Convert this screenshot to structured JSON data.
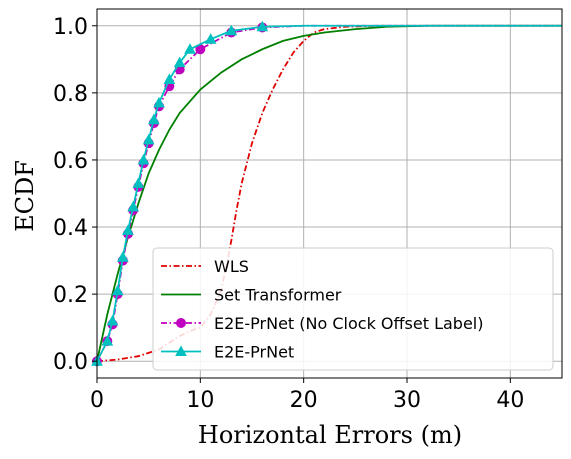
{
  "chart_data": {
    "type": "line",
    "xlabel": "Horizontal Errors (m)",
    "ylabel": "ECDF",
    "xlim": [
      0,
      45
    ],
    "ylim": [
      -0.05,
      1.05
    ],
    "xticks": [
      "0",
      "10",
      "20",
      "30",
      "40"
    ],
    "yticks": [
      "0.0",
      "0.2",
      "0.4",
      "0.6",
      "0.8",
      "1.0"
    ],
    "grid": true,
    "legend_position": "lower-right",
    "series": [
      {
        "name": "WLS",
        "color": "#e00000",
        "style": "dashdot",
        "marker": "none",
        "x": [
          0,
          2,
          4,
          6,
          7,
          8,
          9,
          10,
          11,
          12,
          12.5,
          13,
          13.5,
          14,
          15,
          16,
          17,
          18,
          19,
          20,
          21,
          22,
          24,
          27,
          30,
          45
        ],
        "y": [
          0,
          0.005,
          0.015,
          0.035,
          0.055,
          0.075,
          0.09,
          0.1,
          0.14,
          0.21,
          0.28,
          0.36,
          0.45,
          0.53,
          0.65,
          0.74,
          0.81,
          0.87,
          0.92,
          0.955,
          0.98,
          0.99,
          0.997,
          1.0,
          1.0,
          1.0
        ]
      },
      {
        "name": "Set Transformer",
        "color": "#008000",
        "style": "solid",
        "marker": "none",
        "x": [
          0,
          1,
          2,
          3,
          4,
          5,
          6,
          7,
          8,
          10,
          12,
          14,
          16,
          18,
          20,
          22,
          25,
          28,
          32,
          45
        ],
        "y": [
          0,
          0.14,
          0.26,
          0.37,
          0.47,
          0.56,
          0.63,
          0.69,
          0.74,
          0.81,
          0.86,
          0.9,
          0.93,
          0.955,
          0.97,
          0.98,
          0.99,
          0.997,
          1.0,
          1.0
        ]
      },
      {
        "name": "E2E-PrNet (No Clock Offset Label)",
        "color": "#c000c0",
        "style": "dashdot",
        "marker": "circle",
        "x": [
          0,
          1,
          1.5,
          2,
          2.5,
          3,
          3.5,
          4,
          4.5,
          5,
          5.5,
          6,
          7,
          8,
          10,
          13,
          16,
          20,
          45
        ],
        "y": [
          0,
          0.06,
          0.11,
          0.2,
          0.3,
          0.38,
          0.45,
          0.52,
          0.59,
          0.65,
          0.71,
          0.76,
          0.82,
          0.87,
          0.93,
          0.98,
          0.995,
          1.0,
          1.0
        ]
      },
      {
        "name": "E2E-PrNet",
        "color": "#00bfbf",
        "style": "solid",
        "marker": "triangle",
        "x": [
          0,
          1,
          1.5,
          2,
          2.5,
          3,
          3.5,
          4,
          4.5,
          5,
          5.5,
          6,
          7,
          8,
          9,
          11,
          13,
          16,
          20,
          45
        ],
        "y": [
          0,
          0.06,
          0.12,
          0.21,
          0.31,
          0.39,
          0.46,
          0.53,
          0.6,
          0.66,
          0.72,
          0.77,
          0.84,
          0.89,
          0.93,
          0.96,
          0.985,
          0.997,
          1.0,
          1.0
        ]
      }
    ]
  }
}
